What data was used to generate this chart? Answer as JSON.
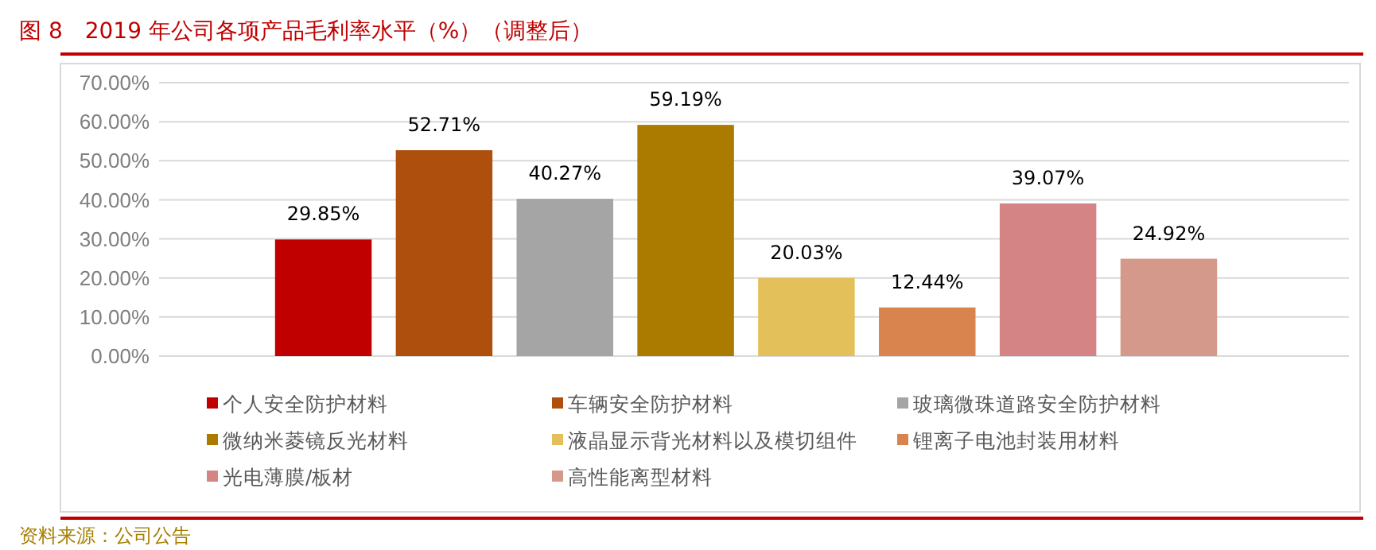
{
  "chart_data": {
    "type": "bar",
    "title": "图 8　2019 年公司各项产品毛利率水平（%）（调整后）",
    "categories": [
      null
    ],
    "series": [
      {
        "name": "个人安全防护材料",
        "color": "#c00000",
        "values": [
          29.85
        ],
        "value_labels": [
          "29.85%"
        ]
      },
      {
        "name": "车辆安全防护材料",
        "color": "#ae4f0e",
        "values": [
          52.71
        ],
        "value_labels": [
          "52.71%"
        ]
      },
      {
        "name": "玻璃微珠道路安全防护材料",
        "color": "#a5a5a5",
        "values": [
          40.27
        ],
        "value_labels": [
          "40.27%"
        ]
      },
      {
        "name": "微纳米菱镜反光材料",
        "color": "#ab7b00",
        "values": [
          59.19
        ],
        "value_labels": [
          "59.19%"
        ]
      },
      {
        "name": "液晶显示背光材料以及模切组件",
        "color": "#e3c05a",
        "values": [
          20.03
        ],
        "value_labels": [
          "20.03%"
        ]
      },
      {
        "name": "锂离子电池封装用材料",
        "color": "#d9834f",
        "values": [
          12.44
        ],
        "value_labels": [
          "12.44%"
        ]
      },
      {
        "name": "光电薄膜/板材",
        "color": "#d48484",
        "values": [
          39.07
        ],
        "value_labels": [
          "39.07%"
        ]
      },
      {
        "name": "高性能离型材料",
        "color": "#d4998a",
        "values": [
          24.92
        ],
        "value_labels": [
          "24.92%"
        ]
      }
    ],
    "ylim": [
      0,
      70
    ],
    "yticks": [
      {
        "value": 0,
        "label": "0.00%"
      },
      {
        "value": 10,
        "label": "10.00%"
      },
      {
        "value": 20,
        "label": "20.00%"
      },
      {
        "value": 30,
        "label": "30.00%"
      },
      {
        "value": 40,
        "label": "40.00%"
      },
      {
        "value": 50,
        "label": "50.00%"
      },
      {
        "value": 60,
        "label": "60.00%"
      },
      {
        "value": 70,
        "label": "70.00%"
      }
    ],
    "grid": "y",
    "legend": "bottom",
    "annotations": [
      "资料来源：公司公告"
    ]
  }
}
